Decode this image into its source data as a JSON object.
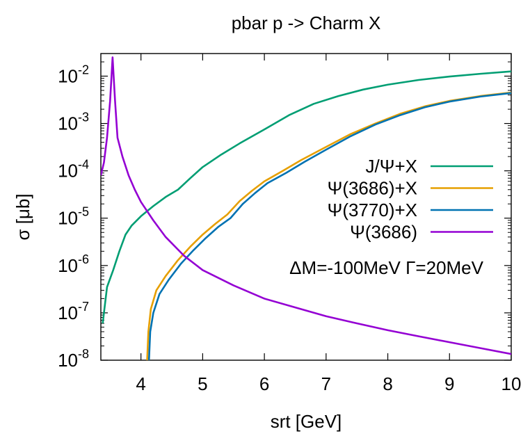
{
  "chart_data": {
    "type": "line",
    "title": "pbar p -> Charm X",
    "xlabel": "srt [GeV]",
    "ylabel": "σ [μb]",
    "xlim": [
      3.35,
      10
    ],
    "ylim": [
      1e-08,
      0.03
    ],
    "yscale": "log",
    "grid": false,
    "legend_position": "right",
    "x_ticks": [
      4,
      5,
      6,
      7,
      8,
      9,
      10
    ],
    "x_tick_labels": [
      "4",
      "5",
      "6",
      "7",
      "8",
      "9",
      "10"
    ],
    "y_ticks": [
      1e-08,
      1e-07,
      1e-06,
      1e-05,
      0.0001,
      0.001,
      0.01
    ],
    "y_tick_base": "10",
    "y_tick_exponents": [
      "-8",
      "-7",
      "-6",
      "-5",
      "-4",
      "-3",
      "-2"
    ],
    "annotation": "ΔM=-100MeV Γ=20MeV",
    "series": [
      {
        "name": "J/Ψ+X",
        "color": "#009e73",
        "points": [
          [
            3.38,
            6e-08
          ],
          [
            3.45,
            3.5e-07
          ],
          [
            3.55,
            8e-07
          ],
          [
            3.65,
            2e-06
          ],
          [
            3.75,
            4.5e-06
          ],
          [
            3.85,
            7e-06
          ],
          [
            4.0,
            1.1e-05
          ],
          [
            4.2,
            1.8e-05
          ],
          [
            4.4,
            2.8e-05
          ],
          [
            4.6,
            4e-05
          ],
          [
            4.8,
            7e-05
          ],
          [
            5.0,
            0.00012
          ],
          [
            5.3,
            0.00022
          ],
          [
            5.6,
            0.00038
          ],
          [
            6.0,
            0.00075
          ],
          [
            6.4,
            0.0015
          ],
          [
            6.8,
            0.0026
          ],
          [
            7.2,
            0.0038
          ],
          [
            7.6,
            0.0052
          ],
          [
            8.0,
            0.0066
          ],
          [
            8.5,
            0.0083
          ],
          [
            9.0,
            0.0098
          ],
          [
            9.5,
            0.0112
          ],
          [
            10.0,
            0.0126
          ]
        ]
      },
      {
        "name": "Ψ(3686)+X",
        "color": "#e69f00",
        "points": [
          [
            4.1,
            1e-08
          ],
          [
            4.12,
            4e-08
          ],
          [
            4.16,
            1.2e-07
          ],
          [
            4.25,
            3e-07
          ],
          [
            4.4,
            6e-07
          ],
          [
            4.6,
            1.3e-06
          ],
          [
            4.8,
            2.5e-06
          ],
          [
            5.0,
            4.5e-06
          ],
          [
            5.2,
            7.5e-06
          ],
          [
            5.4,
            1.2e-05
          ],
          [
            5.6,
            2.3e-05
          ],
          [
            5.8,
            3.8e-05
          ],
          [
            6.0,
            6e-05
          ],
          [
            6.3,
            0.0001
          ],
          [
            6.6,
            0.00017
          ],
          [
            7.0,
            0.00032
          ],
          [
            7.4,
            0.0006
          ],
          [
            7.8,
            0.001
          ],
          [
            8.2,
            0.0016
          ],
          [
            8.6,
            0.0023
          ],
          [
            9.0,
            0.003
          ],
          [
            9.5,
            0.0038
          ],
          [
            10.0,
            0.0045
          ]
        ]
      },
      {
        "name": "Ψ(3770)+X",
        "color": "#0072b2",
        "points": [
          [
            4.13,
            1e-08
          ],
          [
            4.15,
            4e-08
          ],
          [
            4.2,
            1e-07
          ],
          [
            4.3,
            2.5e-07
          ],
          [
            4.45,
            5e-07
          ],
          [
            4.65,
            1.1e-06
          ],
          [
            4.85,
            2.1e-06
          ],
          [
            5.05,
            3.8e-06
          ],
          [
            5.25,
            6.5e-06
          ],
          [
            5.45,
            1e-05
          ],
          [
            5.65,
            2e-05
          ],
          [
            5.85,
            3.4e-05
          ],
          [
            6.05,
            5.5e-05
          ],
          [
            6.35,
            9e-05
          ],
          [
            6.65,
            0.000155
          ],
          [
            7.0,
            0.00028
          ],
          [
            7.4,
            0.00054
          ],
          [
            7.8,
            0.00095
          ],
          [
            8.2,
            0.0015
          ],
          [
            8.6,
            0.0022
          ],
          [
            9.0,
            0.0029
          ],
          [
            9.5,
            0.0037
          ],
          [
            10.0,
            0.0044
          ]
        ]
      },
      {
        "name": "Ψ(3686)",
        "color": "#9400d3",
        "points": [
          [
            3.35,
            8e-05
          ],
          [
            3.4,
            0.00015
          ],
          [
            3.45,
            0.0005
          ],
          [
            3.5,
            0.003
          ],
          [
            3.54,
            0.025
          ],
          [
            3.58,
            0.003
          ],
          [
            3.62,
            0.0005
          ],
          [
            3.7,
            0.0002
          ],
          [
            3.8,
            8e-05
          ],
          [
            3.9,
            4e-05
          ],
          [
            4.0,
            2.2e-05
          ],
          [
            4.2,
            9e-06
          ],
          [
            4.4,
            4e-06
          ],
          [
            4.7,
            1.6e-06
          ],
          [
            5.0,
            8e-07
          ],
          [
            5.5,
            3.8e-07
          ],
          [
            6.0,
            2e-07
          ],
          [
            6.5,
            1.3e-07
          ],
          [
            7.0,
            8.5e-08
          ],
          [
            7.5,
            6e-08
          ],
          [
            8.0,
            4.3e-08
          ],
          [
            8.5,
            3.2e-08
          ],
          [
            9.0,
            2.4e-08
          ],
          [
            9.5,
            1.8e-08
          ],
          [
            10.0,
            1.35e-08
          ]
        ]
      }
    ]
  }
}
